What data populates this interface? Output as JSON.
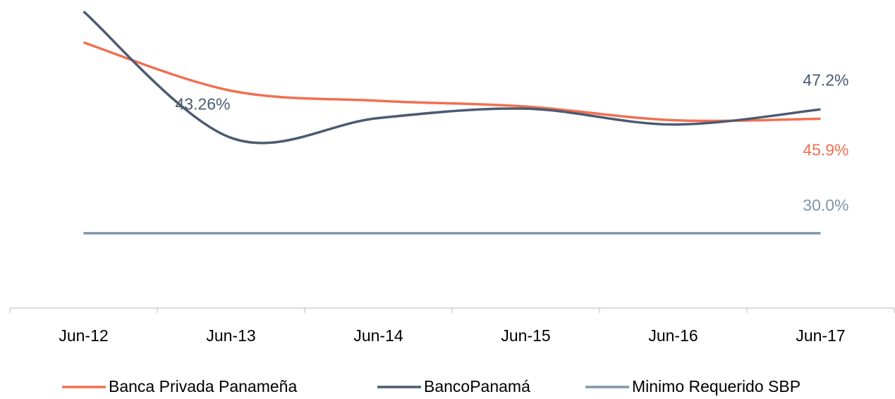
{
  "chart_data": {
    "type": "line",
    "categories": [
      "Jun-12",
      "Jun-13",
      "Jun-14",
      "Jun-15",
      "Jun-16",
      "Jun-17"
    ],
    "series": [
      {
        "name": "Banca Privada Panameña",
        "color": "#f07052",
        "values": [
          56.5,
          49.8,
          48.4,
          47.6,
          45.7,
          45.9
        ],
        "value_labels": [
          null,
          null,
          null,
          null,
          null,
          "45.9%"
        ]
      },
      {
        "name": "BancoPanamá",
        "color": "#4b5b71",
        "values": [
          60.8,
          43.26,
          46.0,
          47.3,
          45.1,
          47.2
        ],
        "value_labels": [
          null,
          "43.26%",
          null,
          null,
          null,
          "47.2%"
        ]
      },
      {
        "name": "Minimo Requerido SBP",
        "color": "#8096ab",
        "values": [
          30.0,
          30.0,
          30.0,
          30.0,
          30.0,
          30.0
        ],
        "value_labels": [
          null,
          null,
          null,
          null,
          null,
          "30.0%"
        ]
      }
    ],
    "ylim": [
      19.6,
      62.4
    ],
    "legend": "bottom"
  }
}
